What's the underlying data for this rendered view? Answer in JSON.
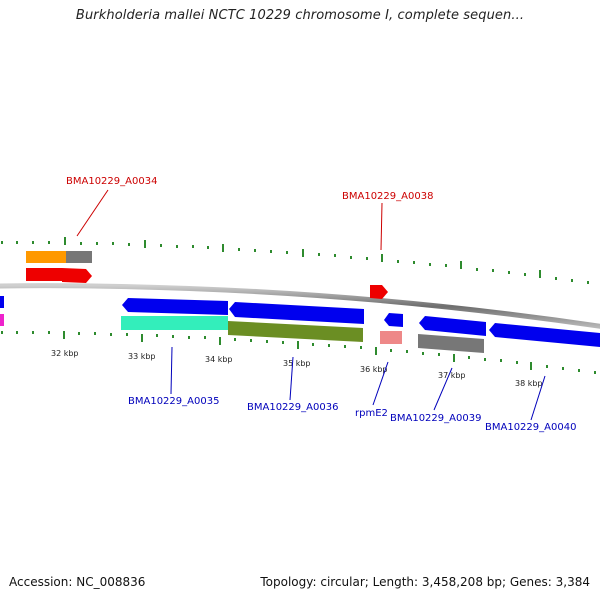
{
  "title": "Burkholderia mallei NCTC 10229 chromosome I, complete sequen...",
  "footer": {
    "accession": "Accession: NC_008836",
    "topology": "Topology: circular; Length: 3,458,208 bp; Genes: 3,384"
  },
  "colors": {
    "backbone": "#8a8a8a",
    "tick": "#2e8b2e",
    "label_red": "#cc0000",
    "label_blue": "#0000bb",
    "red": "#ee0000",
    "blue": "#0000ee",
    "orange": "#ff9900",
    "gray": "#777777",
    "teal": "#33eebb",
    "olive": "#6b8e23",
    "pink": "#ee8888",
    "magenta": "#ee22cc"
  },
  "ticks": [
    "32 kbp",
    "33 kbp",
    "34 kbp",
    "35 kbp",
    "36 kbp",
    "37 kbp",
    "38 kbp"
  ],
  "gene_labels": [
    {
      "text": "BMA10229_A0034",
      "color": "label_red"
    },
    {
      "text": "BMA10229_A0038",
      "color": "label_red"
    },
    {
      "text": "BMA10229_A0035",
      "color": "label_blue"
    },
    {
      "text": "BMA10229_A0036",
      "color": "label_blue"
    },
    {
      "text": "rpmE2",
      "color": "label_blue"
    },
    {
      "text": "BMA10229_A0039",
      "color": "label_blue"
    },
    {
      "text": "BMA10229_A0040",
      "color": "label_blue"
    }
  ]
}
